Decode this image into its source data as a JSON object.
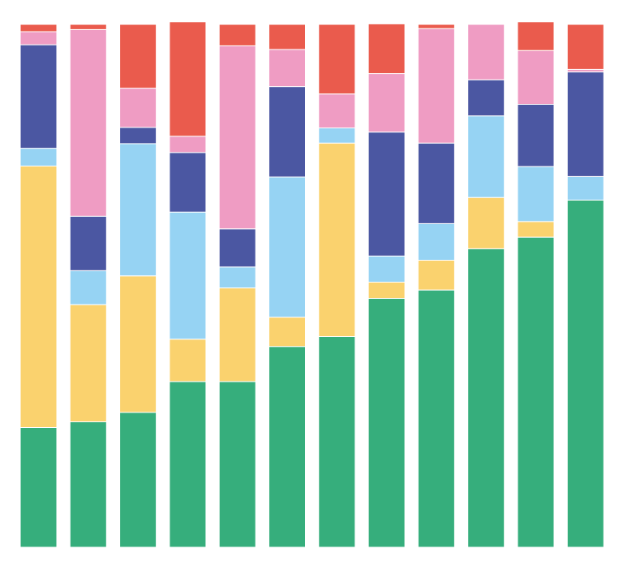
{
  "chart_data": {
    "type": "bar",
    "stacked": true,
    "normalized": true,
    "title": "",
    "xlabel": "",
    "ylabel": "",
    "ylim": [
      0,
      100
    ],
    "grid": false,
    "legend": "none",
    "categories": [
      "",
      "",
      "",
      "",
      "",
      "",
      "",
      "",
      "",
      "",
      "",
      ""
    ],
    "series": [
      {
        "color": "#36ae7c",
        "values": [
          22.9,
          24.0,
          25.8,
          31.7,
          31.7,
          38.4,
          40.3,
          47.6,
          49.2,
          57.1,
          59.3,
          66.4
        ]
      },
      {
        "color": "#fad26e",
        "values": [
          50.0,
          22.4,
          26.1,
          8.1,
          17.9,
          5.6,
          37.0,
          3.1,
          5.7,
          9.8,
          3.0,
          0.0
        ]
      },
      {
        "color": "#96d3f3",
        "values": [
          3.4,
          6.5,
          25.3,
          24.3,
          4.0,
          26.8,
          2.9,
          5.0,
          7.0,
          15.6,
          10.5,
          4.5
        ]
      },
      {
        "color": "#4b57a2",
        "values": [
          19.8,
          10.4,
          3.1,
          11.4,
          7.3,
          17.3,
          0.0,
          23.7,
          15.4,
          6.9,
          11.9,
          20.0
        ]
      },
      {
        "color": "#ef9cc3",
        "values": [
          2.5,
          35.7,
          7.5,
          3.1,
          35.0,
          7.1,
          6.5,
          11.2,
          21.9,
          10.6,
          10.3,
          0.5
        ]
      },
      {
        "color": "#ea5b4d",
        "values": [
          1.4,
          1.0,
          12.2,
          21.9,
          4.1,
          4.8,
          13.3,
          9.5,
          0.8,
          0.0,
          5.5,
          8.6
        ]
      }
    ]
  }
}
